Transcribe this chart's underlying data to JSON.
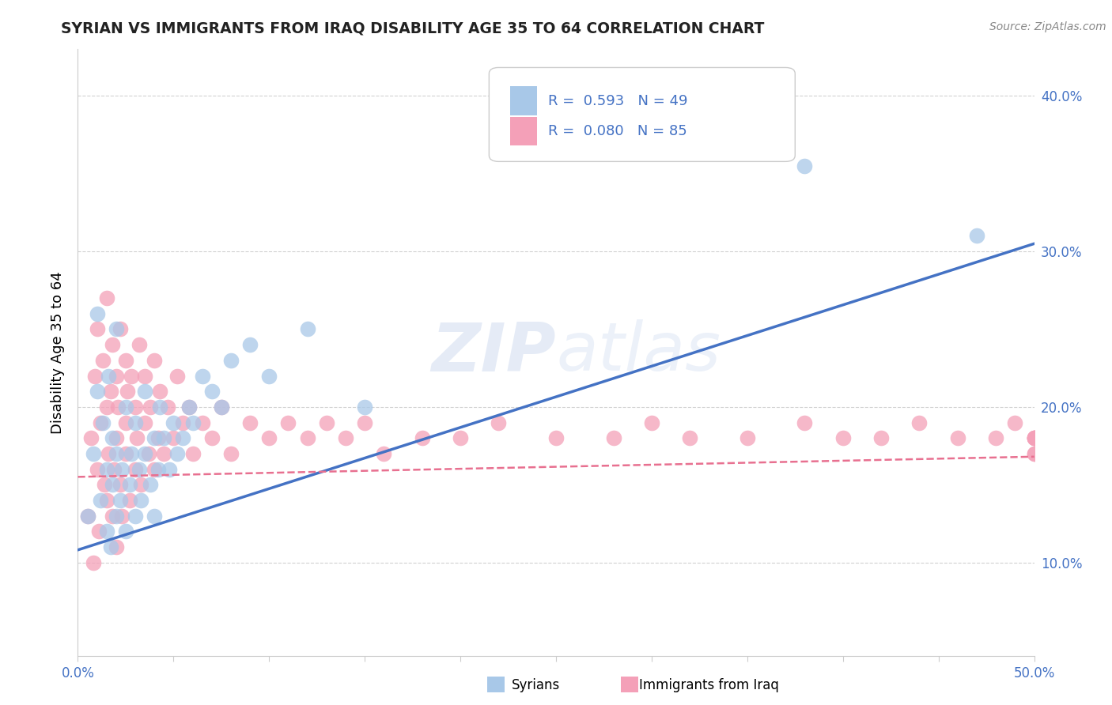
{
  "title": "SYRIAN VS IMMIGRANTS FROM IRAQ DISABILITY AGE 35 TO 64 CORRELATION CHART",
  "source": "Source: ZipAtlas.com",
  "ylabel": "Disability Age 35 to 64",
  "xlim": [
    0.0,
    0.5
  ],
  "ylim": [
    0.04,
    0.43
  ],
  "color_syrian": "#A8C8E8",
  "color_iraq": "#F4A0B8",
  "color_syrian_line": "#4472C4",
  "color_iraq_line": "#E87090",
  "watermark_zip": "ZIP",
  "watermark_atlas": "atlas",
  "syrians_x": [
    0.005,
    0.008,
    0.01,
    0.01,
    0.012,
    0.013,
    0.015,
    0.015,
    0.016,
    0.017,
    0.018,
    0.018,
    0.02,
    0.02,
    0.02,
    0.022,
    0.023,
    0.025,
    0.025,
    0.027,
    0.028,
    0.03,
    0.03,
    0.032,
    0.033,
    0.035,
    0.035,
    0.038,
    0.04,
    0.04,
    0.042,
    0.043,
    0.045,
    0.048,
    0.05,
    0.052,
    0.055,
    0.058,
    0.06,
    0.065,
    0.07,
    0.075,
    0.08,
    0.09,
    0.1,
    0.12,
    0.15,
    0.38,
    0.47
  ],
  "syrians_y": [
    0.13,
    0.17,
    0.21,
    0.26,
    0.14,
    0.19,
    0.12,
    0.16,
    0.22,
    0.11,
    0.15,
    0.18,
    0.13,
    0.17,
    0.25,
    0.14,
    0.16,
    0.12,
    0.2,
    0.15,
    0.17,
    0.13,
    0.19,
    0.16,
    0.14,
    0.17,
    0.21,
    0.15,
    0.13,
    0.18,
    0.16,
    0.2,
    0.18,
    0.16,
    0.19,
    0.17,
    0.18,
    0.2,
    0.19,
    0.22,
    0.21,
    0.2,
    0.23,
    0.24,
    0.22,
    0.25,
    0.2,
    0.355,
    0.31
  ],
  "iraq_x": [
    0.005,
    0.007,
    0.008,
    0.009,
    0.01,
    0.01,
    0.011,
    0.012,
    0.013,
    0.014,
    0.015,
    0.015,
    0.015,
    0.016,
    0.017,
    0.018,
    0.018,
    0.019,
    0.02,
    0.02,
    0.02,
    0.021,
    0.022,
    0.022,
    0.023,
    0.025,
    0.025,
    0.025,
    0.026,
    0.027,
    0.028,
    0.03,
    0.03,
    0.031,
    0.032,
    0.033,
    0.035,
    0.035,
    0.037,
    0.038,
    0.04,
    0.04,
    0.042,
    0.043,
    0.045,
    0.047,
    0.05,
    0.052,
    0.055,
    0.058,
    0.06,
    0.065,
    0.07,
    0.075,
    0.08,
    0.09,
    0.1,
    0.11,
    0.12,
    0.13,
    0.14,
    0.15,
    0.16,
    0.18,
    0.2,
    0.22,
    0.25,
    0.28,
    0.3,
    0.32,
    0.35,
    0.38,
    0.4,
    0.42,
    0.44,
    0.46,
    0.48,
    0.49,
    0.5,
    0.5,
    0.5,
    0.5,
    0.5,
    0.5,
    0.5
  ],
  "iraq_y": [
    0.13,
    0.18,
    0.1,
    0.22,
    0.16,
    0.25,
    0.12,
    0.19,
    0.23,
    0.15,
    0.2,
    0.27,
    0.14,
    0.17,
    0.21,
    0.13,
    0.24,
    0.16,
    0.18,
    0.22,
    0.11,
    0.2,
    0.15,
    0.25,
    0.13,
    0.19,
    0.23,
    0.17,
    0.21,
    0.14,
    0.22,
    0.16,
    0.2,
    0.18,
    0.24,
    0.15,
    0.19,
    0.22,
    0.17,
    0.2,
    0.16,
    0.23,
    0.18,
    0.21,
    0.17,
    0.2,
    0.18,
    0.22,
    0.19,
    0.2,
    0.17,
    0.19,
    0.18,
    0.2,
    0.17,
    0.19,
    0.18,
    0.19,
    0.18,
    0.19,
    0.18,
    0.19,
    0.17,
    0.18,
    0.18,
    0.19,
    0.18,
    0.18,
    0.19,
    0.18,
    0.18,
    0.19,
    0.18,
    0.18,
    0.19,
    0.18,
    0.18,
    0.19,
    0.18,
    0.18,
    0.17,
    0.18,
    0.18,
    0.17,
    0.18
  ],
  "yticks": [
    0.1,
    0.2,
    0.3,
    0.4
  ],
  "ytick_labels": [
    "10.0%",
    "20.0%",
    "30.0%",
    "40.0%"
  ]
}
